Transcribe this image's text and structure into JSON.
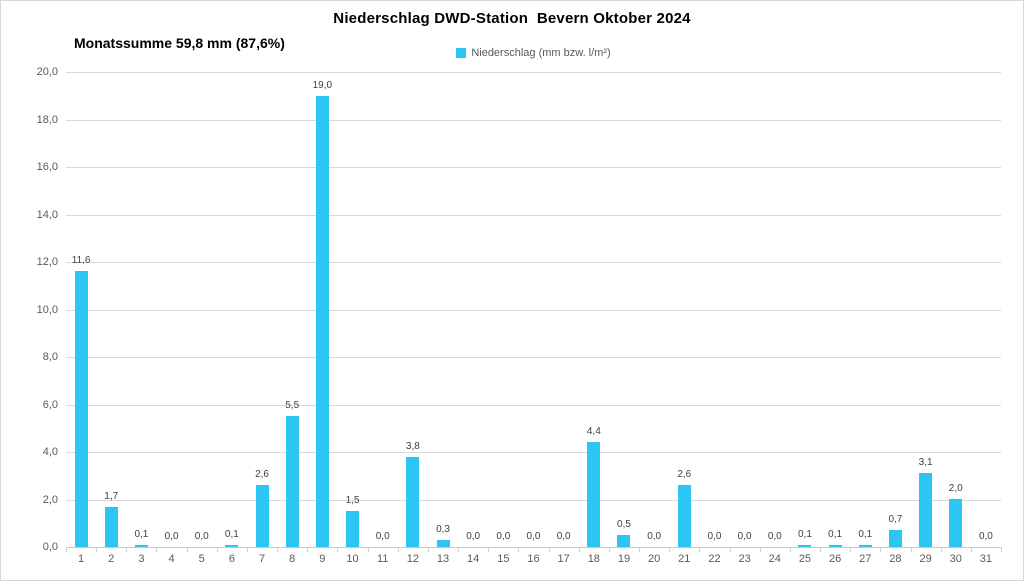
{
  "header": {
    "title": "Niederschlag DWD-Station  Bevern Oktober 2024",
    "subtitle": "Monatssumme 59,8 mm (87,6%)"
  },
  "legend": {
    "label": "Niederschlag (mm bzw. l/m²)",
    "swatch_color": "#2BC7F2"
  },
  "colors": {
    "bar": "#2BC7F2",
    "gridline": "#D9D9D9",
    "axis_line": "#C9C9C9",
    "axis_text": "#595959",
    "data_label_text": "#404040",
    "title_text": "#000000",
    "background": "#FFFFFF",
    "border": "#D7D7D7"
  },
  "chart_data": {
    "type": "bar",
    "title": "Niederschlag DWD-Station  Bevern Oktober 2024",
    "subtitle": "Monatssumme 59,8 mm (87,6%)",
    "legend_entries": [
      "Niederschlag (mm bzw. l/m²)"
    ],
    "legend_position": "top-center",
    "xlabel": "",
    "ylabel": "",
    "grid": true,
    "ylim": [
      0,
      20
    ],
    "ytick_step": 2,
    "ytick_labels": [
      "0,0",
      "2,0",
      "4,0",
      "6,0",
      "8,0",
      "10,0",
      "12,0",
      "14,0",
      "16,0",
      "18,0",
      "20,0"
    ],
    "categories": [
      "1",
      "2",
      "3",
      "4",
      "5",
      "6",
      "7",
      "8",
      "9",
      "10",
      "11",
      "12",
      "13",
      "14",
      "15",
      "16",
      "17",
      "18",
      "19",
      "20",
      "21",
      "22",
      "23",
      "24",
      "25",
      "26",
      "27",
      "28",
      "29",
      "30",
      "31"
    ],
    "values": [
      11.6,
      1.7,
      0.1,
      0.0,
      0.0,
      0.1,
      2.6,
      5.5,
      19.0,
      1.5,
      0.0,
      3.8,
      0.3,
      0.0,
      0.0,
      0.0,
      0.0,
      4.4,
      0.5,
      0.0,
      2.6,
      0.0,
      0.0,
      0.0,
      0.1,
      0.1,
      0.1,
      0.7,
      3.1,
      2.0,
      0.0
    ],
    "value_labels": [
      "11,6",
      "1,7",
      "0,1",
      "0,0",
      "0,0",
      "0,1",
      "2,6",
      "5,5",
      "19,0",
      "1,5",
      "0,0",
      "3,8",
      "0,3",
      "0,0",
      "0,0",
      "0,0",
      "0,0",
      "4,4",
      "0,5",
      "0,0",
      "2,6",
      "0,0",
      "0,0",
      "0,0",
      "0,1",
      "0,1",
      "0,1",
      "0,7",
      "3,1",
      "2,0",
      "0,0"
    ],
    "series": [
      {
        "name": "Niederschlag (mm bzw. l/m²)",
        "values": [
          11.6,
          1.7,
          0.1,
          0.0,
          0.0,
          0.1,
          2.6,
          5.5,
          19.0,
          1.5,
          0.0,
          3.8,
          0.3,
          0.0,
          0.0,
          0.0,
          0.0,
          4.4,
          0.5,
          0.0,
          2.6,
          0.0,
          0.0,
          0.0,
          0.1,
          0.1,
          0.1,
          0.7,
          3.1,
          2.0,
          0.0
        ]
      }
    ]
  }
}
